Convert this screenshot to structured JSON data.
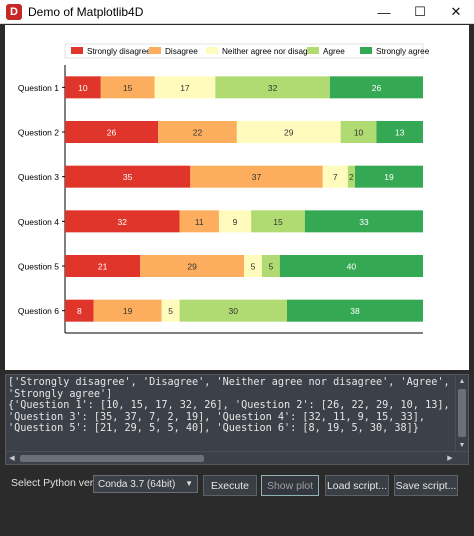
{
  "window": {
    "title": "Demo of Matplotlib4D",
    "icon_letter": "D",
    "minimize": "—",
    "maximize": "☐",
    "close": "✕"
  },
  "chart_data": {
    "type": "bar",
    "orientation": "horizontal",
    "stacked": true,
    "categories": [
      "Question 1",
      "Question 2",
      "Question 3",
      "Question 4",
      "Question 5",
      "Question 6"
    ],
    "series": [
      {
        "name": "Strongly disagree",
        "color": "#e0352a",
        "values": [
          10,
          26,
          35,
          32,
          21,
          8
        ]
      },
      {
        "name": "Disagree",
        "color": "#fcad5e",
        "values": [
          15,
          22,
          37,
          11,
          29,
          19
        ]
      },
      {
        "name": "Neither agree nor disagree",
        "color": "#fefbbd",
        "values": [
          17,
          29,
          7,
          9,
          5,
          5
        ]
      },
      {
        "name": "Agree",
        "color": "#b0db72",
        "values": [
          32,
          10,
          2,
          15,
          5,
          30
        ]
      },
      {
        "name": "Strongly agree",
        "color": "#34a853",
        "values": [
          26,
          13,
          19,
          33,
          40,
          38
        ]
      }
    ],
    "xlim": [
      0,
      100
    ],
    "legend_placement": "top",
    "grid": false
  },
  "console": {
    "text": "['Strongly disagree', 'Disagree', 'Neither agree nor disagree', 'Agree',\n'Strongly agree']\n{'Question 1': [10, 15, 17, 32, 26], 'Question 2': [26, 22, 29, 10, 13],\n'Question 3': [35, 37, 7, 2, 19], 'Question 4': [32, 11, 9, 15, 33],\n'Question 5': [21, 29, 5, 5, 40], 'Question 6': [8, 19, 5, 30, 38]}"
  },
  "controls": {
    "python_label": "Select Python version :",
    "python_selected": "Conda 3.7 (64bit)",
    "execute": "Execute",
    "show_plot": "Show plot",
    "load_script": "Load script...",
    "save_script": "Save script..."
  }
}
